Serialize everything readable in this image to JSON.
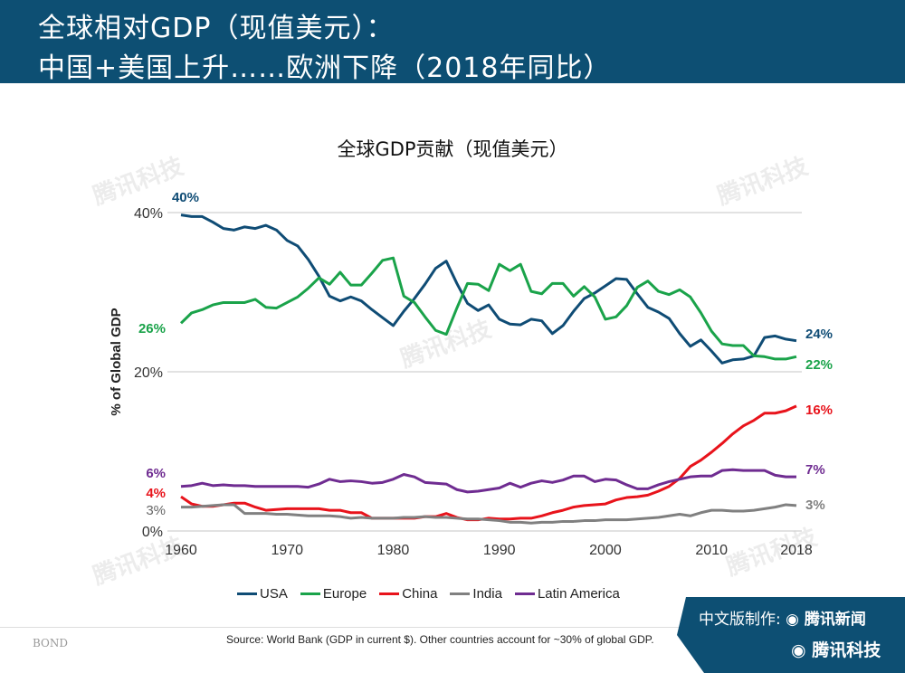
{
  "header": {
    "line1": "全球相对GDP（现值美元）：",
    "line2": "中国+美国上升……欧洲下降（2018年同比）"
  },
  "watermark": "腾讯科技",
  "chart_data": {
    "type": "line",
    "title": "全球GDP贡献（现值美元）",
    "ylabel": "% of Global GDP",
    "ylim": [
      0,
      40
    ],
    "yticks": [
      "0%",
      "20%",
      "40%"
    ],
    "xlim": [
      1960,
      2018
    ],
    "xticks": [
      "1960",
      "1970",
      "1980",
      "1990",
      "2000",
      "2010",
      "2018"
    ],
    "grid": "horizontal",
    "legend_position": "bottom",
    "x_start": 1960,
    "series": [
      {
        "name": "USA",
        "color": "#0f4c75",
        "start_label": "40%",
        "end_label": "24%",
        "values": [
          39.7,
          39.5,
          39.5,
          38.8,
          38,
          37.8,
          38.2,
          38,
          38.4,
          37.8,
          36.5,
          35.8,
          34.1,
          32,
          29.5,
          28.9,
          29.4,
          28.9,
          27.8,
          26.8,
          25.8,
          27.6,
          29.2,
          31,
          33,
          33.9,
          31.1,
          28.6,
          27.7,
          28.4,
          26.6,
          26,
          25.9,
          26.6,
          26.4,
          24.8,
          25.8,
          27.6,
          29.2,
          29.9,
          30.8,
          31.7,
          31.6,
          29.8,
          28.1,
          27.5,
          26.7,
          24.8,
          23.2,
          24,
          22.6,
          21.1,
          21.5,
          21.6,
          22,
          24.3,
          24.5,
          24.1,
          23.9
        ]
      },
      {
        "name": "Europe",
        "color": "#1aa34a",
        "start_label": "26%",
        "end_label": "22%",
        "values": [
          26.1,
          27.4,
          27.8,
          28.4,
          28.7,
          28.7,
          28.7,
          29.1,
          28.1,
          28,
          28.7,
          29.4,
          30.5,
          31.8,
          31,
          32.5,
          30.9,
          30.9,
          32.4,
          34,
          34.3,
          29.5,
          28.7,
          26.9,
          25.2,
          24.7,
          28,
          31.1,
          31,
          30.2,
          33.5,
          32.7,
          33.5,
          30.1,
          29.8,
          31.1,
          31.1,
          29.5,
          30.7,
          29.4,
          26.6,
          26.9,
          28.3,
          30.6,
          31.4,
          30.1,
          29.7,
          30.3,
          29.4,
          27.4,
          25.1,
          23.5,
          23.3,
          23.3,
          22,
          21.9,
          21.6,
          21.6,
          21.9
        ]
      },
      {
        "name": "China",
        "color": "#e8131b",
        "start_label": "4%",
        "end_label": "16%",
        "values": [
          4.3,
          3.4,
          3.1,
          3.1,
          3.3,
          3.5,
          3.5,
          3,
          2.6,
          2.7,
          2.8,
          2.8,
          2.8,
          2.8,
          2.6,
          2.6,
          2.3,
          2.3,
          1.6,
          1.6,
          1.6,
          1.6,
          1.6,
          1.8,
          1.8,
          2.2,
          1.7,
          1.4,
          1.4,
          1.6,
          1.5,
          1.5,
          1.6,
          1.6,
          1.9,
          2.3,
          2.6,
          3,
          3.2,
          3.3,
          3.4,
          3.9,
          4.2,
          4.3,
          4.5,
          5,
          5.6,
          6.6,
          8.1,
          8.9,
          9.9,
          11,
          12.2,
          13.2,
          13.9,
          14.8,
          14.8,
          15.1,
          15.7
        ]
      },
      {
        "name": "India",
        "color": "#808080",
        "start_label": "3%",
        "end_label": "3%",
        "values": [
          3,
          3,
          3.1,
          3.2,
          3.3,
          3.3,
          2.2,
          2.2,
          2.2,
          2.1,
          2.1,
          2,
          1.9,
          1.9,
          1.9,
          1.8,
          1.6,
          1.7,
          1.6,
          1.6,
          1.6,
          1.7,
          1.7,
          1.8,
          1.7,
          1.7,
          1.6,
          1.5,
          1.5,
          1.4,
          1.3,
          1.1,
          1.1,
          1,
          1.1,
          1.1,
          1.2,
          1.2,
          1.3,
          1.3,
          1.4,
          1.4,
          1.4,
          1.5,
          1.6,
          1.7,
          1.9,
          2.1,
          1.9,
          2.3,
          2.6,
          2.6,
          2.5,
          2.5,
          2.6,
          2.8,
          3,
          3.3,
          3.2
        ]
      },
      {
        "name": "Latin America",
        "color": "#6f2c91",
        "start_label": "6%",
        "end_label": "7%",
        "values": [
          5.6,
          5.7,
          6,
          5.7,
          5.8,
          5.7,
          5.7,
          5.6,
          5.6,
          5.6,
          5.6,
          5.6,
          5.5,
          5.9,
          6.5,
          6.2,
          6.3,
          6.2,
          6,
          6.1,
          6.5,
          7.1,
          6.8,
          6.1,
          6,
          5.9,
          5.2,
          4.9,
          5,
          5.2,
          5.4,
          6,
          5.5,
          6,
          6.3,
          6.1,
          6.4,
          6.9,
          6.9,
          6.2,
          6.5,
          6.4,
          5.8,
          5.3,
          5.3,
          5.8,
          6.2,
          6.5,
          6.8,
          6.9,
          6.9,
          7.6,
          7.7,
          7.6,
          7.6,
          7.6,
          7,
          6.8,
          6.8
        ]
      }
    ]
  },
  "footer": {
    "brand": "BOND",
    "source": "Source: World Bank (GDP in current $). Other countries account for ~30% of global GDP."
  },
  "badge": {
    "made_by": "中文版制作:",
    "news": "腾讯新闻",
    "tech": "腾讯科技"
  }
}
